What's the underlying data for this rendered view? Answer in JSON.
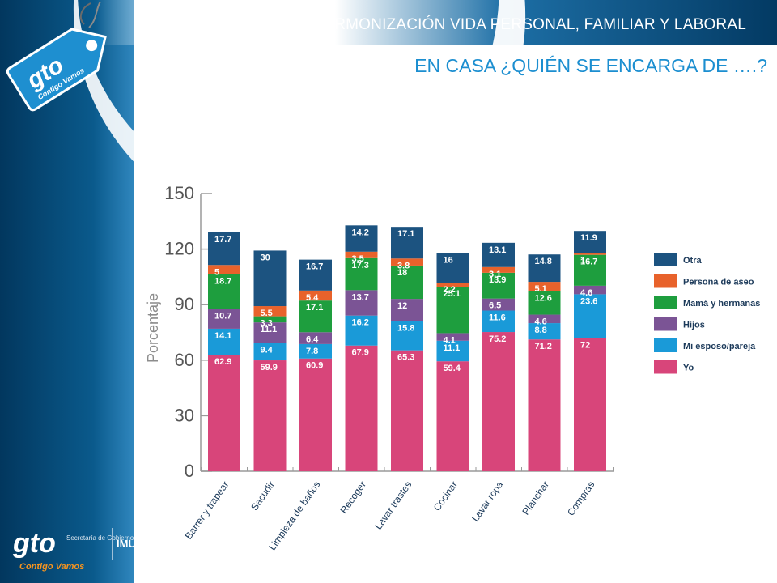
{
  "header": {
    "title": "ARMONIZACIÓN VIDA PERSONAL, FAMILIAR Y LABORAL",
    "subtitle": "EN CASA  ¿QUIÉN SE ENCARGA DE ….?"
  },
  "branding": {
    "tag_logo_text": "gto",
    "tag_logo_tagline": "Contigo Vamos",
    "footer_logo_text": "gto",
    "footer_tagline": "Contigo Vamos",
    "footer_secretaria": "Secretaría de Gobierno",
    "footer_imug": "IMUG"
  },
  "colors": {
    "Yo": "#d8457a",
    "Mi esposo/pareja": "#1a9ad8",
    "Hijos": "#7b5495",
    "Mamá y hermanas": "#1e9e3e",
    "Persona de aseo": "#e8622b",
    "Otra": "#1c5380"
  },
  "chart_data": {
    "type": "bar",
    "stacked": true,
    "categories": [
      "Barrer y trapear",
      "Sacudir",
      "Limpieza de baños",
      "Recoger",
      "Lavar trastes",
      "Cocinar",
      "Lavar ropa",
      "Planchar",
      "Compras"
    ],
    "series": [
      {
        "name": "Yo",
        "values": [
          62.9,
          59.9,
          60.9,
          67.9,
          65.3,
          59.4,
          75.2,
          71.2,
          72
        ]
      },
      {
        "name": "Mi esposo/pareja",
        "values": [
          14.1,
          9.4,
          7.8,
          16.2,
          15.8,
          11.1,
          11.6,
          8.8,
          23.6
        ]
      },
      {
        "name": "Hijos",
        "values": [
          10.7,
          11.1,
          6.4,
          13.7,
          12,
          4.1,
          6.5,
          4.6,
          4.6
        ]
      },
      {
        "name": "Mamá y hermanas",
        "values": [
          18.7,
          3.3,
          17.1,
          17.3,
          18,
          25.1,
          13.9,
          12.6,
          16.7
        ]
      },
      {
        "name": "Persona de aseo",
        "values": [
          5,
          5.5,
          5.4,
          3.5,
          3.8,
          2.2,
          3.1,
          5.1,
          1
        ]
      },
      {
        "name": "Otra",
        "values": [
          17.7,
          30,
          16.7,
          14.2,
          17.1,
          16,
          13.1,
          14.8,
          11.9
        ]
      }
    ],
    "ylabel": "Porcentaje",
    "xlabel": "",
    "ylim": [
      0,
      150
    ],
    "yticks": [
      0,
      30,
      60,
      90,
      120,
      150
    ],
    "grid": false,
    "legend_position": "right",
    "legend_order": [
      "Otra",
      "Persona de aseo",
      "Mamá y hermanas",
      "Hijos",
      "Mi esposo/pareja",
      "Yo"
    ]
  }
}
